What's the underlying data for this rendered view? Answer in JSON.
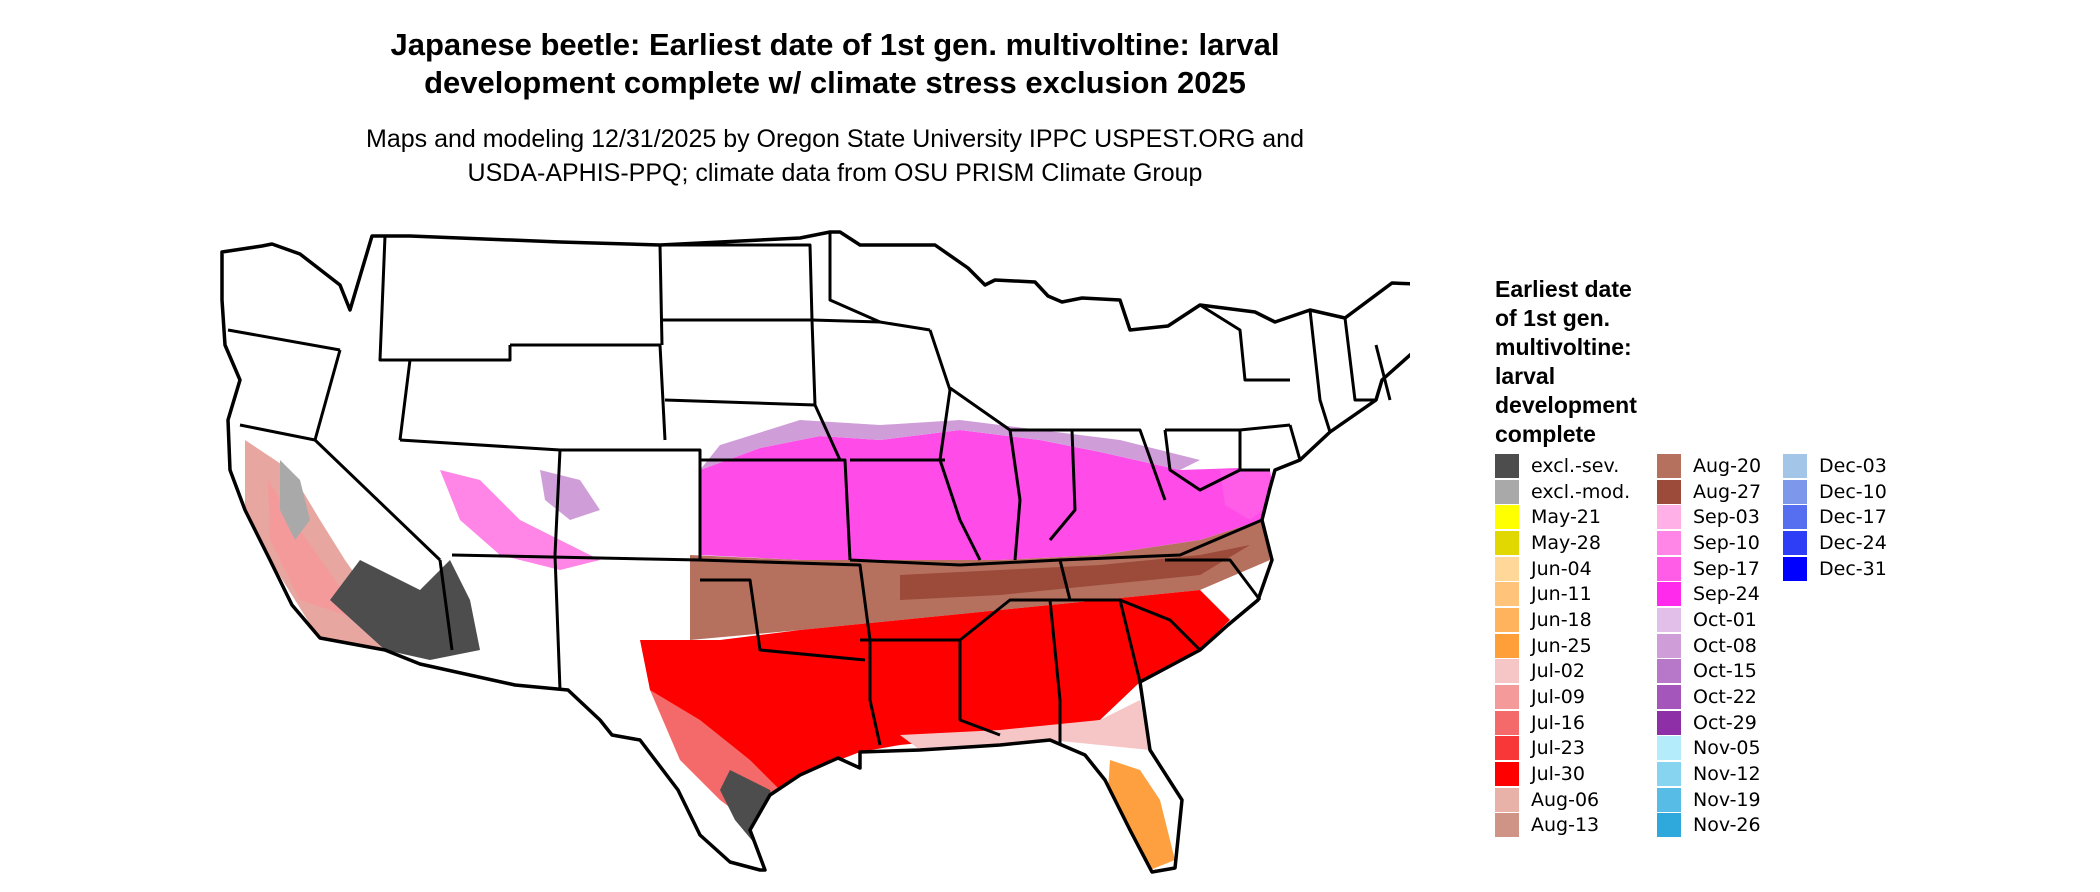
{
  "figure": {
    "title_line1": "Japanese beetle: Earliest date of 1st gen. multivoltine: larval",
    "title_line2": "development complete w/ climate stress exclusion 2025",
    "subtitle_line1": "Maps and modeling 12/31/2025 by Oregon State University IPPC USPEST.ORG and",
    "subtitle_line2": "USDA-APHIS-PPQ; climate data from OSU PRISM Climate Group"
  },
  "legend": {
    "title_lines": [
      "Earliest date",
      "of 1st gen.",
      "multivoltine:",
      "larval",
      "development",
      "complete"
    ],
    "columns": [
      [
        {
          "label": "excl.-sev.",
          "color": "#4d4d4d"
        },
        {
          "label": "excl.-mod.",
          "color": "#a9a9a9"
        },
        {
          "label": "May-21",
          "color": "#ffff00"
        },
        {
          "label": "May-28",
          "color": "#e0d800"
        },
        {
          "label": "Jun-04",
          "color": "#ffd798"
        },
        {
          "label": "Jun-11",
          "color": "#ffc47a"
        },
        {
          "label": "Jun-18",
          "color": "#ffb35c"
        },
        {
          "label": "Jun-25",
          "color": "#ff9f3a"
        },
        {
          "label": "Jul-02",
          "color": "#f6c6c6"
        },
        {
          "label": "Jul-09",
          "color": "#f59a9a"
        },
        {
          "label": "Jul-16",
          "color": "#f46a6a"
        },
        {
          "label": "Jul-23",
          "color": "#f83838"
        },
        {
          "label": "Jul-30",
          "color": "#ff0000"
        },
        {
          "label": "Aug-06",
          "color": "#e8b2a9"
        },
        {
          "label": "Aug-13",
          "color": "#d09487"
        }
      ],
      [
        {
          "label": "Aug-20",
          "color": "#b5705e"
        },
        {
          "label": "Aug-27",
          "color": "#9c4a39"
        },
        {
          "label": "Sep-03",
          "color": "#ffb0e6"
        },
        {
          "label": "Sep-10",
          "color": "#ff86e6"
        },
        {
          "label": "Sep-17",
          "color": "#ff5ce8"
        },
        {
          "label": "Sep-24",
          "color": "#ff2aec"
        },
        {
          "label": "Oct-01",
          "color": "#e2bfe8"
        },
        {
          "label": "Oct-08",
          "color": "#cf9ed9"
        },
        {
          "label": "Oct-15",
          "color": "#b878c9"
        },
        {
          "label": "Oct-22",
          "color": "#a556bb"
        },
        {
          "label": "Oct-29",
          "color": "#8e2fa8"
        },
        {
          "label": "Nov-05",
          "color": "#b4ecfc"
        },
        {
          "label": "Nov-12",
          "color": "#86d4f0"
        },
        {
          "label": "Nov-19",
          "color": "#58bde6"
        },
        {
          "label": "Nov-26",
          "color": "#2fa8dc"
        }
      ],
      [
        {
          "label": "Dec-03",
          "color": "#a3c5e8"
        },
        {
          "label": "Dec-10",
          "color": "#7d98ea"
        },
        {
          "label": "Dec-17",
          "color": "#566ef0"
        },
        {
          "label": "Dec-24",
          "color": "#2e3ef6"
        },
        {
          "label": "Dec-31",
          "color": "#0000ff"
        }
      ]
    ]
  }
}
